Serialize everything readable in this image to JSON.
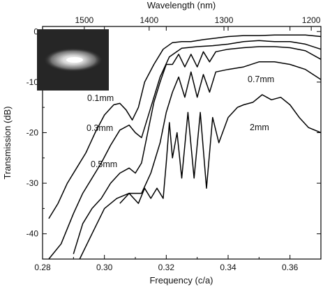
{
  "chart_data": {
    "type": "line",
    "xlabel": "Frequency (c/a)",
    "ylabel": "Transmission (dB)",
    "top_axis_label": "Wavelength (nm)",
    "xlim": [
      0.28,
      0.37
    ],
    "ylim": [
      -45,
      1
    ],
    "x_ticks": [
      "0.28",
      "0.30",
      "0.32",
      "0.34",
      "0.36"
    ],
    "y_ticks": [
      "0",
      "-10",
      "-20",
      "-30",
      "-40"
    ],
    "top_ticks": [
      "1500",
      "1400",
      "1300",
      "1200"
    ],
    "top_tick_wavelengths_nm": [
      1500,
      1400,
      1300,
      1200
    ],
    "grid": false,
    "legend": "none (curves labeled inline)",
    "inset": "near-field image of output mode, top-left",
    "series": [
      {
        "name": "0.1mm",
        "x": [
          0.282,
          0.285,
          0.288,
          0.291,
          0.294,
          0.297,
          0.3,
          0.303,
          0.305,
          0.307,
          0.309,
          0.311,
          0.313,
          0.316,
          0.319,
          0.322,
          0.325,
          0.328,
          0.332,
          0.336,
          0.34,
          0.345,
          0.35,
          0.355,
          0.36,
          0.365,
          0.37
        ],
        "y": [
          -37,
          -34,
          -30,
          -27,
          -24,
          -20,
          -16.5,
          -14.5,
          -14.2,
          -15.5,
          -17.5,
          -15,
          -10,
          -6.5,
          -3.5,
          -2.2,
          -2,
          -2,
          -1.6,
          -1.3,
          -1,
          -0.8,
          -0.8,
          -0.7,
          -0.7,
          -0.7,
          -1
        ]
      },
      {
        "name": "0.3mm",
        "x": [
          0.282,
          0.286,
          0.29,
          0.293,
          0.296,
          0.299,
          0.302,
          0.305,
          0.308,
          0.31,
          0.312,
          0.315,
          0.318,
          0.321,
          0.325,
          0.33,
          0.335,
          0.34,
          0.345,
          0.35,
          0.355,
          0.36,
          0.365,
          0.37
        ],
        "y": [
          -45,
          -42,
          -36,
          -32,
          -29,
          -26,
          -22.5,
          -19.5,
          -18.5,
          -20,
          -21,
          -15,
          -9,
          -5,
          -3.3,
          -3,
          -2.8,
          -2.5,
          -2,
          -1.8,
          -2,
          -2,
          -2.5,
          -3.5
        ]
      },
      {
        "name": "0.5mm",
        "x": [
          0.29,
          0.293,
          0.296,
          0.299,
          0.302,
          0.305,
          0.308,
          0.31,
          0.312,
          0.314,
          0.316,
          0.318,
          0.32,
          0.322,
          0.324,
          0.326,
          0.328,
          0.33,
          0.332,
          0.334,
          0.336,
          0.34,
          0.345,
          0.35,
          0.355,
          0.36,
          0.365,
          0.37
        ],
        "y": [
          -44,
          -38,
          -35,
          -33,
          -30,
          -28,
          -27,
          -28,
          -26,
          -20,
          -14,
          -10,
          -6.5,
          -6.5,
          -4.5,
          -7,
          -4.5,
          -7,
          -4,
          -6,
          -4,
          -3.5,
          -3.2,
          -3,
          -3,
          -3.2,
          -3.8,
          -5.5
        ]
      },
      {
        "name": "0.7mm",
        "x": [
          0.292,
          0.296,
          0.3,
          0.304,
          0.308,
          0.312,
          0.315,
          0.318,
          0.32,
          0.322,
          0.324,
          0.326,
          0.328,
          0.33,
          0.332,
          0.334,
          0.336,
          0.34,
          0.345,
          0.35,
          0.355,
          0.36,
          0.365,
          0.37
        ],
        "y": [
          -45,
          -40,
          -35,
          -33,
          -32,
          -32,
          -28,
          -22,
          -16,
          -12,
          -9,
          -13,
          -8,
          -13,
          -8.5,
          -12,
          -8,
          -7.5,
          -7,
          -6,
          -6,
          -6.5,
          -7.5,
          -9.5
        ]
      },
      {
        "name": "2mm",
        "x": [
          0.305,
          0.308,
          0.311,
          0.313,
          0.315,
          0.317,
          0.319,
          0.32,
          0.321,
          0.322,
          0.3235,
          0.325,
          0.327,
          0.329,
          0.331,
          0.333,
          0.335,
          0.337,
          0.34,
          0.343,
          0.345,
          0.348,
          0.351,
          0.354,
          0.357,
          0.36,
          0.363,
          0.366,
          0.37
        ],
        "y": [
          -34,
          -32,
          -34,
          -31,
          -33,
          -31,
          -33,
          -26,
          -18,
          -25,
          -20,
          -29,
          -16,
          -29,
          -16,
          -31,
          -17,
          -22,
          -17,
          -15,
          -14.5,
          -14,
          -12.5,
          -13.5,
          -13,
          -14.5,
          -17,
          -19,
          -20
        ]
      }
    ]
  }
}
